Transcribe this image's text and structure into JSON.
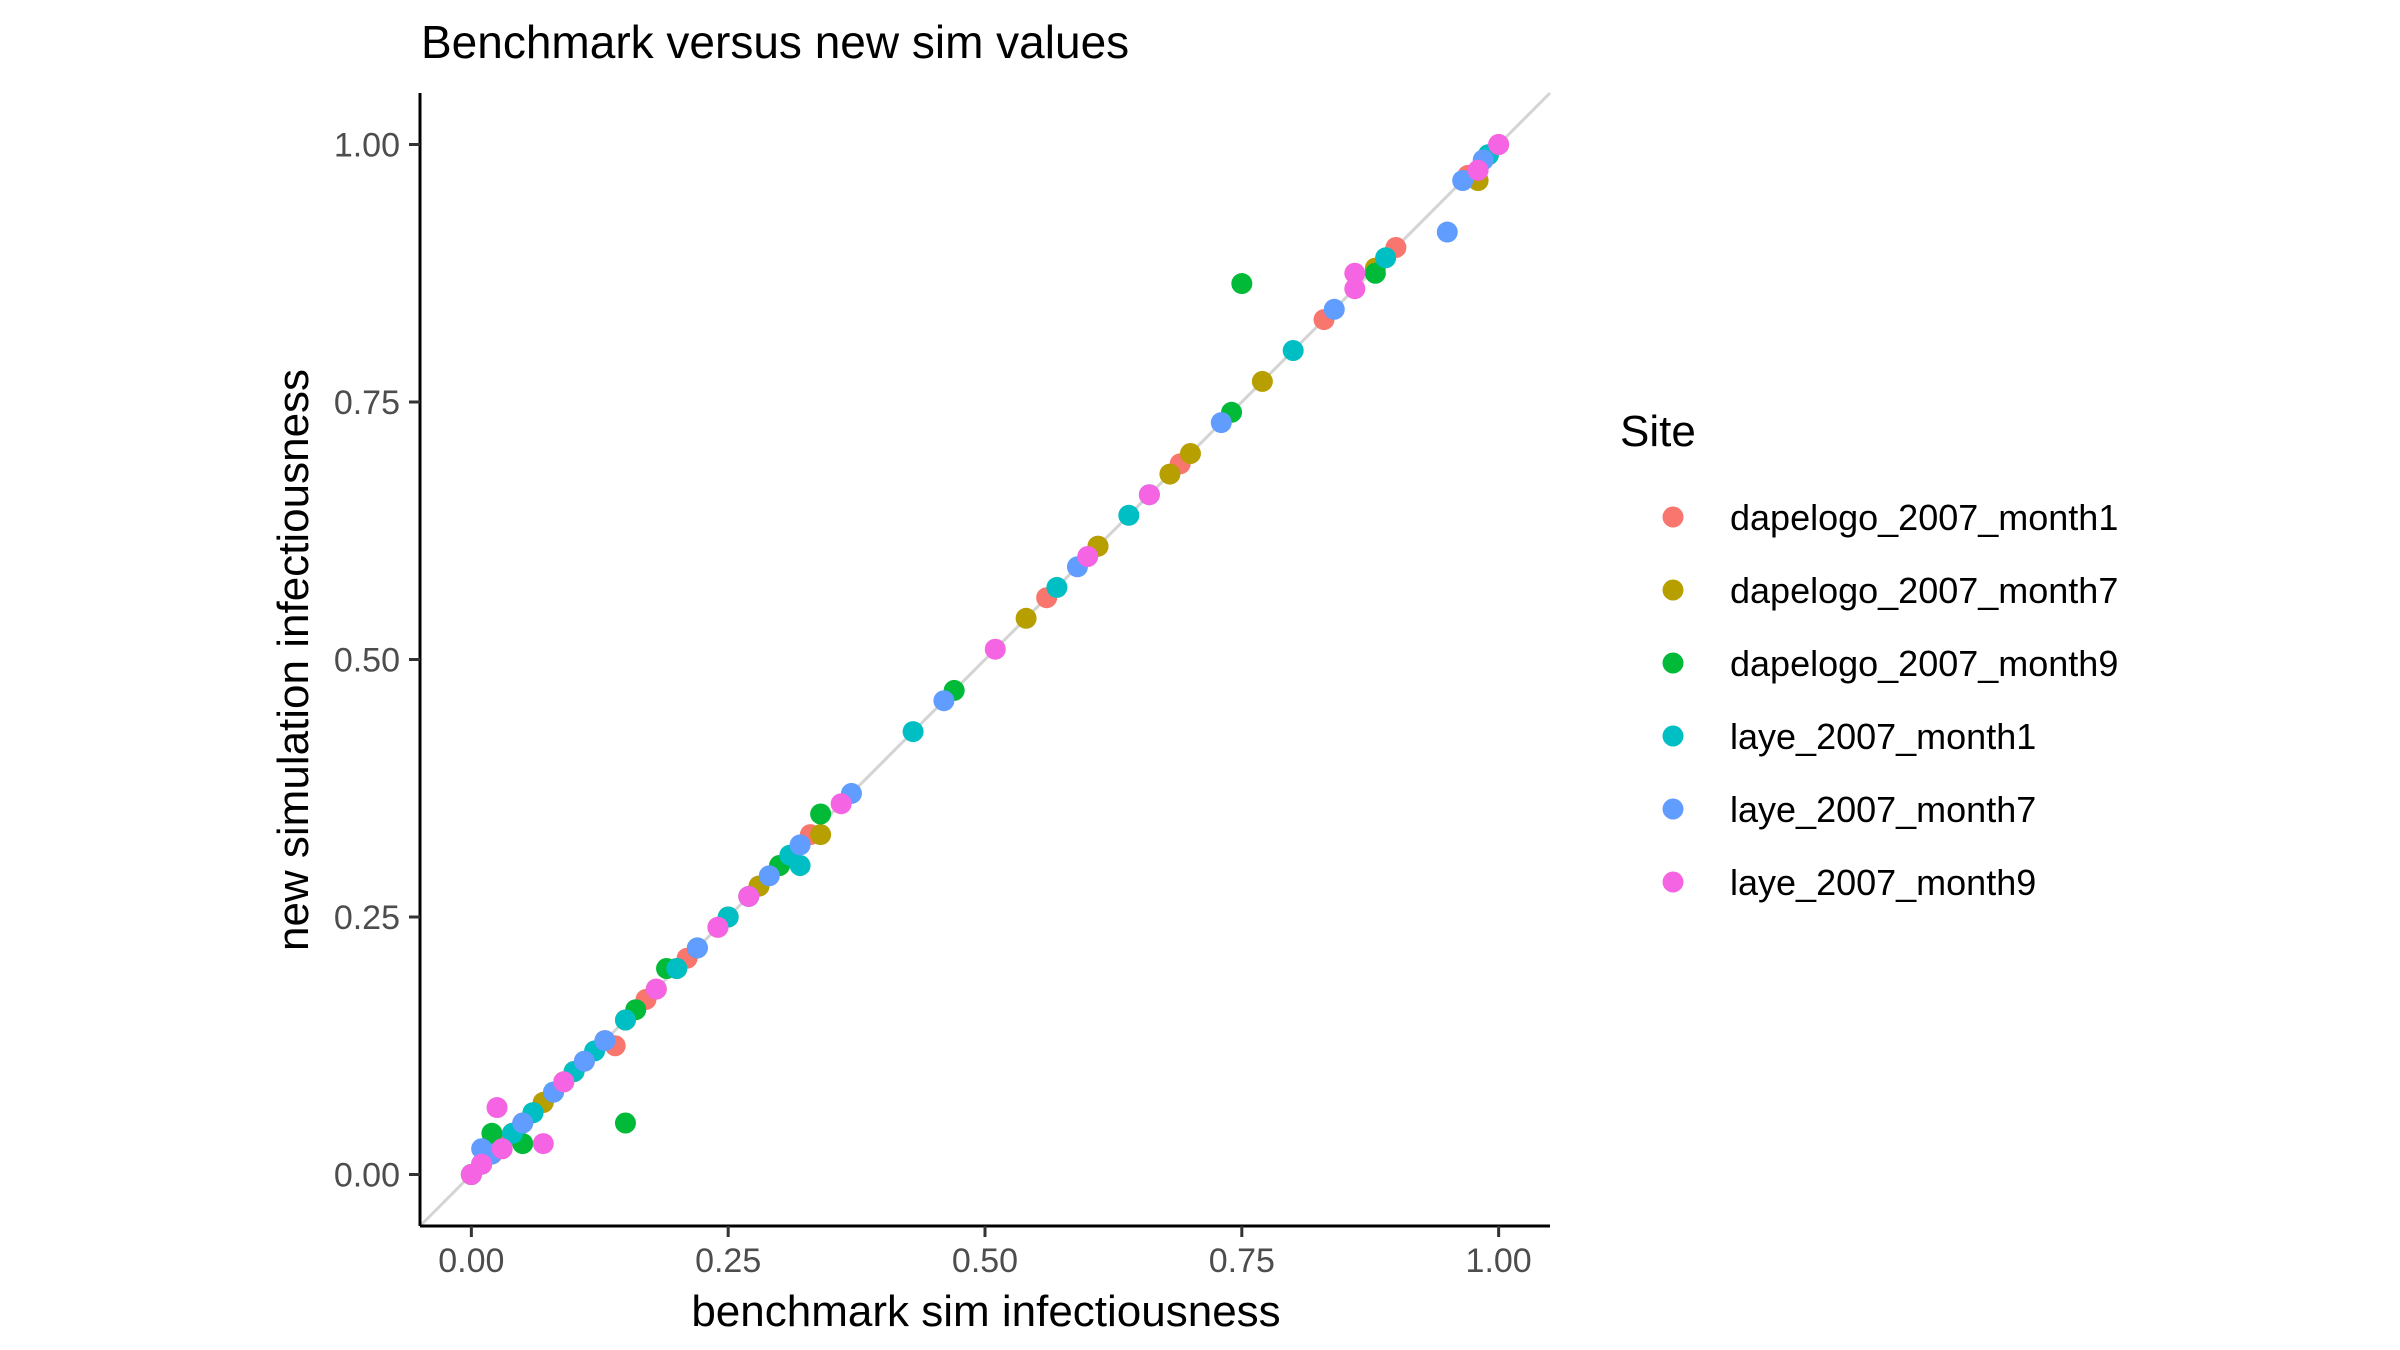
{
  "chart_data": {
    "type": "scatter",
    "title": "Benchmark versus new sim values",
    "xlabel": "benchmark sim infectiousness",
    "ylabel": "new simulation infectiousness",
    "xlim": [
      -0.05,
      1.05
    ],
    "ylim": [
      -0.05,
      1.05
    ],
    "xticks": [
      0.0,
      0.25,
      0.5,
      0.75,
      1.0
    ],
    "xtick_labels": [
      "0.00",
      "0.25",
      "0.50",
      "0.75",
      "1.00"
    ],
    "yticks": [
      0.0,
      0.25,
      0.5,
      0.75,
      1.0
    ],
    "ytick_labels": [
      "0.00",
      "0.25",
      "0.50",
      "0.75",
      "1.00"
    ],
    "grid": false,
    "reference_line": "y = x",
    "legend_title": "Site",
    "legend_position": "right",
    "series": [
      {
        "name": "dapelogo_2007_month1",
        "color": "#F8766D",
        "x": [
          0.0,
          0.01,
          0.02,
          0.03,
          0.05,
          0.07,
          0.09,
          0.11,
          0.13,
          0.14,
          0.17,
          0.21,
          0.24,
          0.28,
          0.3,
          0.33,
          0.56,
          0.61,
          0.69,
          0.83,
          0.9,
          0.97,
          1.0
        ],
        "y": [
          0.0,
          0.01,
          0.02,
          0.03,
          0.05,
          0.07,
          0.09,
          0.11,
          0.13,
          0.125,
          0.17,
          0.21,
          0.24,
          0.28,
          0.3,
          0.33,
          0.56,
          0.61,
          0.69,
          0.83,
          0.9,
          0.97,
          1.0
        ]
      },
      {
        "name": "dapelogo_2007_month7",
        "color": "#B79F00",
        "x": [
          0.0,
          0.02,
          0.04,
          0.07,
          0.09,
          0.1,
          0.15,
          0.18,
          0.2,
          0.25,
          0.28,
          0.34,
          0.54,
          0.61,
          0.68,
          0.7,
          0.77,
          0.88,
          0.98
        ],
        "y": [
          0.0,
          0.02,
          0.04,
          0.07,
          0.09,
          0.1,
          0.15,
          0.18,
          0.2,
          0.25,
          0.28,
          0.33,
          0.54,
          0.61,
          0.68,
          0.7,
          0.77,
          0.88,
          0.965
        ]
      },
      {
        "name": "dapelogo_2007_month9",
        "color": "#00BA38",
        "x": [
          0.0,
          0.02,
          0.05,
          0.06,
          0.08,
          0.15,
          0.16,
          0.19,
          0.22,
          0.3,
          0.34,
          0.47,
          0.74,
          0.75,
          0.88,
          0.99
        ],
        "y": [
          0.0,
          0.04,
          0.03,
          0.06,
          0.08,
          0.05,
          0.16,
          0.2,
          0.22,
          0.3,
          0.35,
          0.47,
          0.74,
          0.865,
          0.875,
          0.99
        ]
      },
      {
        "name": "laye_2007_month1",
        "color": "#00BFC4",
        "x": [
          0.01,
          0.04,
          0.06,
          0.1,
          0.12,
          0.15,
          0.2,
          0.25,
          0.27,
          0.31,
          0.32,
          0.43,
          0.57,
          0.64,
          0.66,
          0.8,
          0.89,
          0.99
        ],
        "y": [
          0.01,
          0.04,
          0.06,
          0.1,
          0.12,
          0.15,
          0.2,
          0.25,
          0.27,
          0.31,
          0.3,
          0.43,
          0.57,
          0.64,
          0.66,
          0.8,
          0.89,
          0.99
        ]
      },
      {
        "name": "laye_2007_month7",
        "color": "#619CFF",
        "x": [
          0.0,
          0.01,
          0.02,
          0.05,
          0.08,
          0.11,
          0.13,
          0.22,
          0.29,
          0.32,
          0.37,
          0.46,
          0.59,
          0.73,
          0.84,
          0.95,
          0.965,
          0.985
        ],
        "y": [
          0.0,
          0.025,
          0.02,
          0.05,
          0.08,
          0.11,
          0.13,
          0.22,
          0.29,
          0.32,
          0.37,
          0.46,
          0.59,
          0.73,
          0.84,
          0.915,
          0.965,
          0.985
        ]
      },
      {
        "name": "laye_2007_month9",
        "color": "#F564E3",
        "x": [
          0.0,
          0.01,
          0.025,
          0.03,
          0.07,
          0.09,
          0.18,
          0.24,
          0.27,
          0.36,
          0.51,
          0.6,
          0.66,
          0.86,
          0.86,
          0.98,
          1.0
        ],
        "y": [
          0.0,
          0.01,
          0.065,
          0.025,
          0.03,
          0.09,
          0.18,
          0.24,
          0.27,
          0.36,
          0.51,
          0.6,
          0.66,
          0.875,
          0.86,
          0.975,
          1.0
        ]
      }
    ]
  }
}
